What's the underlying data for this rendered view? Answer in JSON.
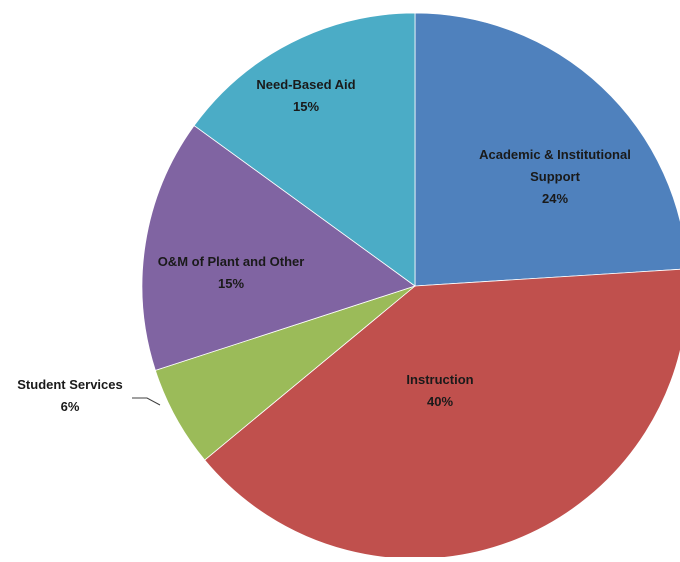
{
  "chart_data": {
    "type": "pie",
    "title": "",
    "slices": [
      {
        "label": "Academic & Institutional Support",
        "label_lines": [
          "Academic & Institutional",
          "Support"
        ],
        "percent_text": "24%",
        "value": 24,
        "color": "#4f81bd"
      },
      {
        "label": "Instruction",
        "label_lines": [
          "Instruction"
        ],
        "percent_text": "40%",
        "value": 40,
        "color": "#c0504d"
      },
      {
        "label": "Student Services",
        "label_lines": [
          "Student Services"
        ],
        "percent_text": "6%",
        "value": 6,
        "color": "#9bbb59"
      },
      {
        "label": "O&M of Plant and Other",
        "label_lines": [
          "O&M of Plant and Other"
        ],
        "percent_text": "15%",
        "value": 15,
        "color": "#8064a2"
      },
      {
        "label": "Need-Based Aid",
        "label_lines": [
          "Need-Based Aid"
        ],
        "percent_text": "15%",
        "value": 15,
        "color": "#4bacc6"
      }
    ],
    "start_position": "12 o'clock",
    "direction": "clockwise",
    "legend": "none",
    "labels_placement": "on slices; Student Services outside with leader line"
  }
}
